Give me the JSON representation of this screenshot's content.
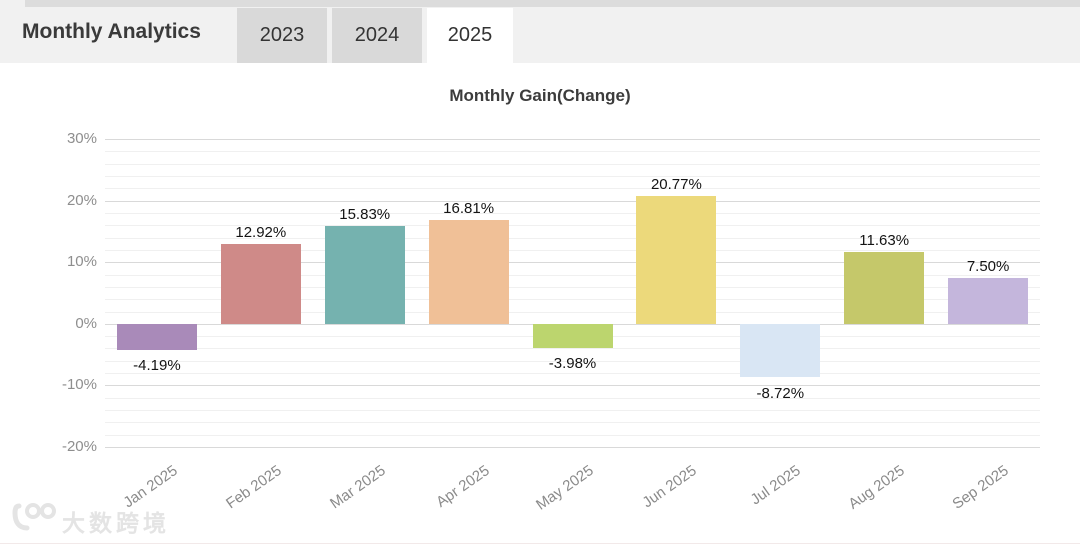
{
  "header": {
    "title": "Monthly Analytics",
    "tabs": [
      {
        "label": "2023",
        "active": false
      },
      {
        "label": "2024",
        "active": false
      },
      {
        "label": "2025",
        "active": true
      }
    ]
  },
  "chart_data": {
    "type": "bar",
    "title": "Monthly Gain(Change)",
    "categories": [
      "Jan 2025",
      "Feb 2025",
      "Mar 2025",
      "Apr 2025",
      "May 2025",
      "Jun 2025",
      "Jul 2025",
      "Aug 2025",
      "Sep 2025"
    ],
    "values": [
      -4.19,
      12.92,
      15.83,
      16.81,
      -3.98,
      20.77,
      -8.72,
      11.63,
      7.5
    ],
    "value_labels": [
      "-4.19%",
      "12.92%",
      "15.83%",
      "16.81%",
      "-3.98%",
      "20.77%",
      "-8.72%",
      "11.63%",
      "7.50%"
    ],
    "bar_colors": [
      "#a98ab9",
      "#cf8a88",
      "#75b2af",
      "#f0c097",
      "#bcd56e",
      "#ecd97b",
      "#d9e6f4",
      "#c5c86a",
      "#c4b6dc"
    ],
    "xlabel": "",
    "ylabel": "",
    "ylim": [
      -20,
      30
    ],
    "yticks": [
      {
        "label": "30%",
        "value": 30
      },
      {
        "label": "20%",
        "value": 20
      },
      {
        "label": "10%",
        "value": 10
      },
      {
        "label": "0%",
        "value": 0
      },
      {
        "label": "-10%",
        "value": -10
      },
      {
        "label": "-20%",
        "value": -20
      }
    ],
    "minor_grid_step": 2,
    "grid": true,
    "legend": "none"
  },
  "watermark": {
    "text": "大数跨境",
    "logo": "100"
  }
}
